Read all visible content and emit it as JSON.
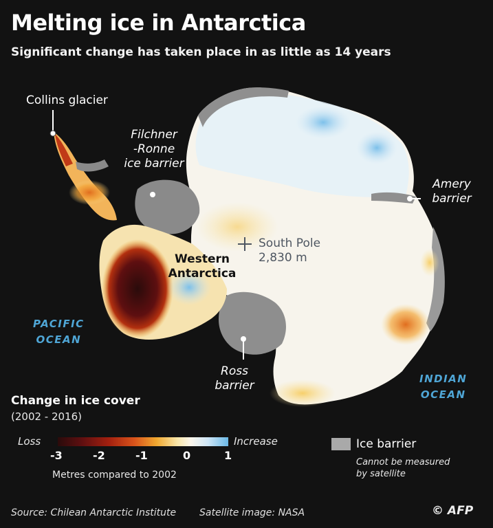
{
  "title": "Melting ice in Antarctica",
  "subtitle": "Significant change has taken place in as little as 14 years",
  "map_labels": {
    "collins": "Collins glacier",
    "filchner": [
      "Filchner",
      "-Ronne",
      "ice barrier"
    ],
    "amery": [
      "Amery",
      "barrier"
    ],
    "south_pole": "South Pole",
    "south_pole_elev": "2,830 m",
    "western": [
      "Western",
      "Antarctica"
    ],
    "ross": [
      "Ross",
      "barrier"
    ],
    "pacific": [
      "PACIFIC",
      "OCEAN"
    ],
    "indian": [
      "INDIAN",
      "OCEAN"
    ]
  },
  "legend": {
    "title": "Change in ice cover",
    "period": "(2002 - 2016)",
    "loss": "Loss",
    "increase": "Increase",
    "ticks": [
      "-3",
      "-2",
      "-1",
      "0",
      "1"
    ],
    "units": "Metres compared to 2002",
    "barrier_label": "Ice barrier",
    "barrier_note": [
      "Cannot be measured",
      "by satellite"
    ],
    "colors": {
      "loss": "#5e0f10",
      "neutral": "#fbf6ec",
      "increase": "#6ab8e6",
      "barrier": "#a9a9a9"
    }
  },
  "footer": {
    "source": "Source: Chilean Antarctic Institute",
    "satellite": "Satellite image: NASA",
    "credit": "© AFP"
  }
}
